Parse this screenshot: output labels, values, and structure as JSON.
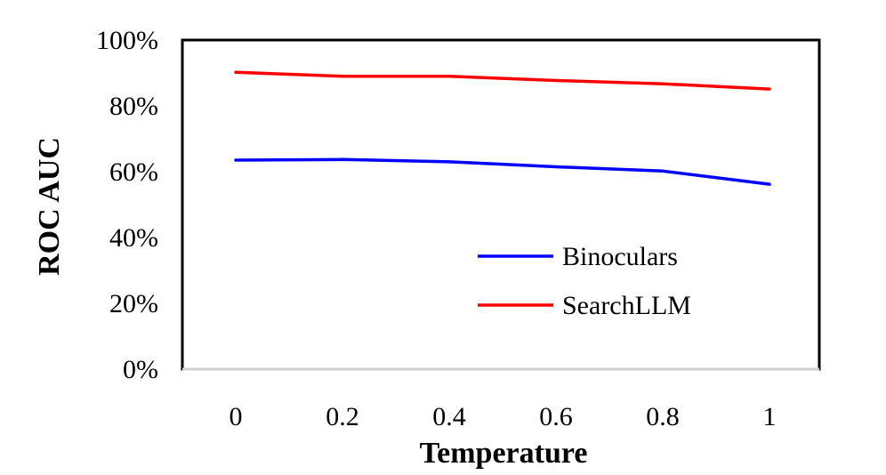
{
  "chart_data": {
    "type": "line",
    "title": "",
    "xlabel": "Temperature",
    "ylabel": "ROC AUC",
    "x": [
      0,
      0.2,
      0.4,
      0.6,
      0.8,
      1
    ],
    "x_tick_labels": [
      "0",
      "0.2",
      "0.4",
      "0.6",
      "0.8",
      "1"
    ],
    "y_ticks": [
      0,
      0.2,
      0.4,
      0.6,
      0.8,
      1.0
    ],
    "y_tick_labels": [
      "0%",
      "20%",
      "40%",
      "60%",
      "80%",
      "100%"
    ],
    "ylim": [
      0,
      1
    ],
    "grid": false,
    "legend_position": "bottom-right",
    "series": [
      {
        "name": "Binoculars",
        "color": "#0000ff",
        "values": [
          0.635,
          0.637,
          0.63,
          0.615,
          0.602,
          0.562
        ]
      },
      {
        "name": "SearchLLM",
        "color": "#ff0000",
        "values": [
          0.902,
          0.89,
          0.89,
          0.877,
          0.867,
          0.851
        ]
      }
    ]
  }
}
